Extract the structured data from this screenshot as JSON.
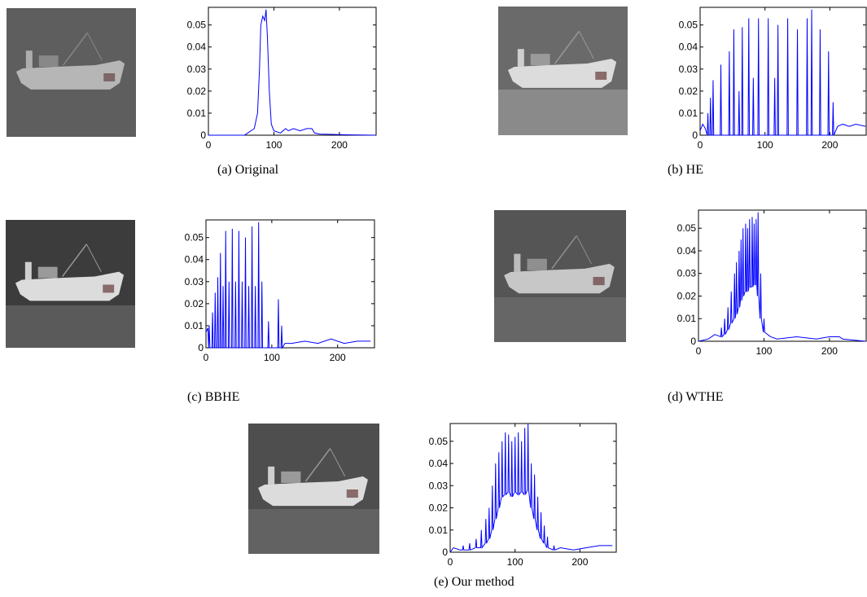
{
  "chart_data": [
    {
      "type": "line",
      "title": "(a) Original",
      "color": "#0000ff",
      "xlim": [
        0,
        256
      ],
      "ylim": [
        0,
        0.058
      ],
      "xticks": [
        0,
        100,
        200
      ],
      "yticks": [
        0,
        0.01,
        0.02,
        0.03,
        0.04,
        0.05
      ],
      "x": [
        0,
        55,
        60,
        70,
        75,
        78,
        80,
        83,
        86,
        88,
        90,
        93,
        96,
        100,
        110,
        118,
        122,
        130,
        140,
        150,
        158,
        162,
        170,
        200,
        210,
        255
      ],
      "values": [
        0,
        0,
        0.001,
        0.003,
        0.01,
        0.03,
        0.05,
        0.054,
        0.052,
        0.057,
        0.045,
        0.02,
        0.005,
        0.002,
        0.001,
        0.003,
        0.002,
        0.003,
        0.002,
        0.003,
        0.003,
        0.001,
        0.0005,
        0.0003,
        0.0002,
        0
      ]
    },
    {
      "type": "line",
      "title": "(b) HE",
      "color": "#0000ff",
      "xlim": [
        0,
        256
      ],
      "ylim": [
        0,
        0.058
      ],
      "xticks": [
        0,
        100,
        200
      ],
      "yticks": [
        0,
        0.01,
        0.02,
        0.03,
        0.04,
        0.05
      ],
      "x": [
        0,
        4,
        8,
        11,
        12,
        13,
        15,
        16,
        17,
        19,
        20,
        21,
        31,
        32,
        33,
        44,
        45,
        46,
        51,
        52,
        53,
        59,
        60,
        61,
        64,
        65,
        66,
        74,
        75,
        76,
        81,
        82,
        83,
        89,
        90,
        91,
        104,
        105,
        106,
        114,
        115,
        116,
        119,
        120,
        121,
        134,
        135,
        136,
        149,
        150,
        151,
        164,
        165,
        166,
        171,
        172,
        173,
        184,
        185,
        186,
        197,
        198,
        199,
        204,
        205,
        206,
        212,
        220,
        230,
        240,
        255
      ],
      "values": [
        0.002,
        0.005,
        0.003,
        0,
        0.01,
        0,
        0,
        0.017,
        0,
        0,
        0.025,
        0,
        0,
        0.032,
        0,
        0,
        0.038,
        0,
        0,
        0.048,
        0,
        0,
        0.02,
        0,
        0,
        0.049,
        0,
        0,
        0.053,
        0,
        0,
        0.026,
        0,
        0,
        0.053,
        0,
        0,
        0.053,
        0,
        0,
        0.026,
        0,
        0,
        0.05,
        0,
        0,
        0.053,
        0,
        0,
        0.048,
        0,
        0,
        0.053,
        0,
        0,
        0.057,
        0,
        0,
        0.048,
        0,
        0,
        0.038,
        0,
        0,
        0.015,
        0,
        0.004,
        0.005,
        0.004,
        0.005,
        0.004
      ]
    },
    {
      "type": "line",
      "title": "(c) BBHE",
      "color": "#0000ff",
      "xlim": [
        0,
        256
      ],
      "ylim": [
        0,
        0.058
      ],
      "xticks": [
        0,
        100,
        200
      ],
      "yticks": [
        0,
        0.01,
        0.02,
        0.03,
        0.04,
        0.05
      ],
      "x": [
        0,
        3,
        4,
        5,
        6,
        9,
        10,
        11,
        13,
        14,
        15,
        17,
        18,
        19,
        21,
        22,
        23,
        25,
        26,
        27,
        29,
        30,
        31,
        34,
        35,
        36,
        39,
        40,
        41,
        44,
        45,
        46,
        49,
        50,
        51,
        54,
        55,
        56,
        59,
        60,
        61,
        64,
        65,
        66,
        69,
        70,
        71,
        74,
        75,
        76,
        79,
        80,
        81,
        84,
        85,
        86,
        94,
        95,
        96,
        109,
        110,
        111,
        114,
        115,
        116,
        120,
        130,
        150,
        170,
        190,
        210,
        230,
        250
      ],
      "values": [
        0.007,
        0.009,
        0,
        0.01,
        0,
        0,
        0.016,
        0,
        0,
        0.025,
        0,
        0,
        0.032,
        0,
        0,
        0.043,
        0,
        0,
        0.028,
        0,
        0,
        0.053,
        0,
        0,
        0.03,
        0,
        0,
        0.054,
        0,
        0,
        0.03,
        0,
        0,
        0.053,
        0,
        0,
        0.03,
        0,
        0,
        0.05,
        0,
        0,
        0.028,
        0,
        0,
        0.055,
        0,
        0,
        0.028,
        0,
        0,
        0.057,
        0,
        0,
        0.03,
        0,
        0,
        0.012,
        0,
        0,
        0.022,
        0,
        0,
        0.01,
        0,
        0.002,
        0.002,
        0.003,
        0.002,
        0.004,
        0.002,
        0.003,
        0.003
      ]
    },
    {
      "type": "line",
      "title": "(d) WTHE",
      "color": "#0000ff",
      "xlim": [
        0,
        256
      ],
      "ylim": [
        0,
        0.058
      ],
      "xticks": [
        0,
        100,
        200
      ],
      "yticks": [
        0,
        0.01,
        0.02,
        0.03,
        0.04,
        0.05
      ],
      "x": [
        0,
        15,
        25,
        34,
        35,
        36,
        39,
        40,
        41,
        44,
        45,
        46,
        49,
        50,
        51,
        54,
        55,
        56,
        57,
        58,
        59,
        61,
        62,
        63,
        64,
        65,
        66,
        67,
        68,
        69,
        71,
        72,
        73,
        74,
        75,
        76,
        77,
        78,
        79,
        81,
        82,
        83,
        84,
        85,
        86,
        87,
        88,
        89,
        90,
        91,
        92,
        94,
        95,
        96,
        99,
        100,
        101,
        110,
        120,
        150,
        180,
        200,
        215,
        220,
        255
      ],
      "values": [
        0,
        0.001,
        0.003,
        0.002,
        0.006,
        0.002,
        0.003,
        0.01,
        0.003,
        0.005,
        0.015,
        0.005,
        0.008,
        0.022,
        0.008,
        0.01,
        0.03,
        0.01,
        0.012,
        0.035,
        0.012,
        0.015,
        0.04,
        0.015,
        0.018,
        0.045,
        0.018,
        0.02,
        0.05,
        0.02,
        0.022,
        0.052,
        0.022,
        0.022,
        0.05,
        0.022,
        0.024,
        0.054,
        0.024,
        0.024,
        0.055,
        0.024,
        0.025,
        0.052,
        0.025,
        0.025,
        0.054,
        0.025,
        0.02,
        0.057,
        0.02,
        0.01,
        0.03,
        0.01,
        0.004,
        0.01,
        0.004,
        0.002,
        0.001,
        0.002,
        0.001,
        0.002,
        0.002,
        0.001,
        0
      ]
    },
    {
      "type": "line",
      "title": "(e) Our method",
      "color": "#0000ff",
      "xlim": [
        0,
        256
      ],
      "ylim": [
        0,
        0.058
      ],
      "xticks": [
        0,
        100,
        200
      ],
      "yticks": [
        0,
        0.01,
        0.02,
        0.03,
        0.04,
        0.05
      ],
      "x": [
        0,
        5,
        15,
        19,
        20,
        21,
        29,
        30,
        31,
        39,
        40,
        41,
        47,
        48,
        49,
        54,
        55,
        56,
        59,
        60,
        61,
        64,
        65,
        66,
        69,
        70,
        71,
        74,
        75,
        76,
        79,
        80,
        81,
        84,
        85,
        86,
        89,
        90,
        91,
        94,
        95,
        96,
        99,
        100,
        101,
        104,
        105,
        106,
        109,
        110,
        111,
        114,
        115,
        116,
        119,
        120,
        121,
        124,
        125,
        126,
        129,
        130,
        131,
        134,
        135,
        136,
        139,
        140,
        141,
        144,
        145,
        146,
        149,
        150,
        151,
        159,
        160,
        161,
        170,
        190,
        210,
        230,
        250
      ],
      "values": [
        0,
        0.002,
        0.001,
        0.001,
        0.003,
        0.001,
        0.001,
        0.004,
        0.001,
        0.002,
        0.006,
        0.002,
        0.002,
        0.01,
        0.002,
        0.004,
        0.015,
        0.004,
        0.006,
        0.02,
        0.006,
        0.01,
        0.03,
        0.01,
        0.015,
        0.04,
        0.015,
        0.02,
        0.045,
        0.02,
        0.025,
        0.05,
        0.025,
        0.026,
        0.054,
        0.026,
        0.027,
        0.053,
        0.027,
        0.025,
        0.05,
        0.025,
        0.027,
        0.052,
        0.027,
        0.026,
        0.054,
        0.026,
        0.027,
        0.05,
        0.027,
        0.026,
        0.056,
        0.026,
        0.028,
        0.058,
        0.028,
        0.02,
        0.04,
        0.02,
        0.015,
        0.035,
        0.015,
        0.01,
        0.025,
        0.01,
        0.006,
        0.018,
        0.006,
        0.004,
        0.012,
        0.004,
        0.002,
        0.007,
        0.002,
        0.001,
        0.003,
        0.001,
        0.002,
        0.001,
        0.002,
        0.003,
        0.003
      ]
    }
  ]
}
